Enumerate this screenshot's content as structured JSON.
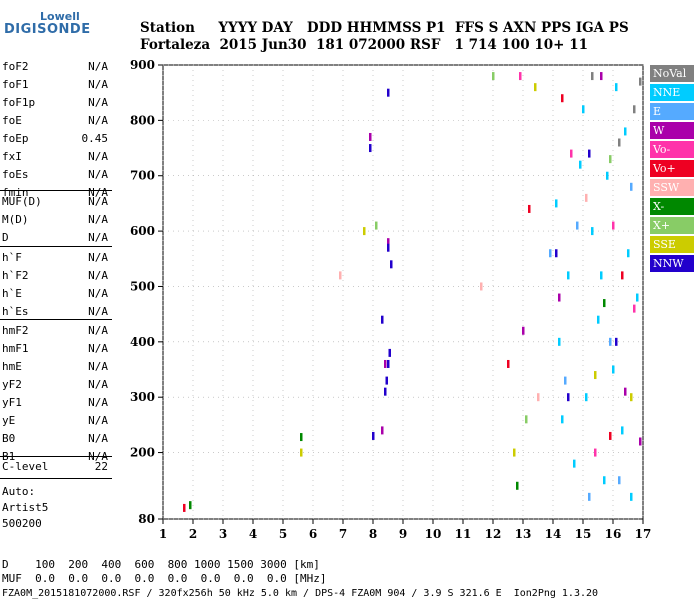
{
  "logo": {
    "line1": "Lowell",
    "line2": "DIGISONDE"
  },
  "header": {
    "row1": "Station     YYYY DAY   DDD HHMMSS P1  FFS S AXN PPS IGA PS",
    "row2": "Fortaleza  2015 Jun30  181 072000 RSF   1 714 100 10+ 11"
  },
  "params": {
    "group1": [
      {
        "name": "foF2",
        "value": "N/A"
      },
      {
        "name": "foF1",
        "value": "N/A"
      },
      {
        "name": "foF1p",
        "value": "N/A"
      },
      {
        "name": "foE",
        "value": "N/A"
      },
      {
        "name": "foEp",
        "value": "0.45"
      },
      {
        "name": "fxI",
        "value": "N/A"
      },
      {
        "name": "foEs",
        "value": "N/A"
      },
      {
        "name": "fmin",
        "value": "N/A"
      }
    ],
    "group2": [
      {
        "name": "MUF(D)",
        "value": "N/A"
      },
      {
        "name": "M(D)",
        "value": "N/A"
      },
      {
        "name": "D",
        "value": "N/A"
      }
    ],
    "group3": [
      {
        "name": "h`F",
        "value": "N/A"
      },
      {
        "name": "h`F2",
        "value": "N/A"
      },
      {
        "name": "h`E",
        "value": "N/A"
      },
      {
        "name": "h`Es",
        "value": "N/A"
      }
    ],
    "group4": [
      {
        "name": "hmF2",
        "value": "N/A"
      },
      {
        "name": "hmF1",
        "value": "N/A"
      },
      {
        "name": "hmE",
        "value": "N/A"
      },
      {
        "name": "yF2",
        "value": "N/A"
      },
      {
        "name": "yF1",
        "value": "N/A"
      },
      {
        "name": "yE",
        "value": "N/A"
      },
      {
        "name": "B0",
        "value": "N/A"
      },
      {
        "name": "B1",
        "value": "N/A"
      }
    ],
    "clevel": {
      "name": "C-level",
      "value": "22"
    }
  },
  "auto": {
    "line1": "Auto:",
    "line2": "Artist5",
    "line3": "500200"
  },
  "footer": {
    "row1": "D    100  200  400  600  800 1000 1500 3000 [km]",
    "row2": "MUF  0.0  0.0  0.0  0.0  0.0  0.0  0.0  0.0 [MHz]",
    "row3": "FZA0M_2015181072000.RSF / 320fx256h 50 kHz 5.0 km / DPS-4 FZA0M 904 / 3.9 S 321.6 E  Ion2Png 1.3.20"
  },
  "chart_data": {
    "type": "scatter",
    "x_ticks": [
      "1",
      "2",
      "3",
      "4",
      "5",
      "6",
      "7",
      "8",
      "9",
      "10",
      "11",
      "12",
      "13",
      "14",
      "15",
      "16",
      "17"
    ],
    "y_ticks": [
      "80",
      "200",
      "300",
      "400",
      "500",
      "600",
      "700",
      "800",
      "900"
    ],
    "xlim": [
      1,
      17
    ],
    "ylim": [
      80,
      900
    ],
    "grid": true,
    "legend_position": "right",
    "legend": [
      {
        "label": "NoVal",
        "color": "#808080"
      },
      {
        "label": "NNE",
        "color": "#00ccff"
      },
      {
        "label": "E",
        "color": "#55aaff"
      },
      {
        "label": "W",
        "color": "#aa00aa"
      },
      {
        "label": "Vo-",
        "color": "#ff33aa"
      },
      {
        "label": "Vo+",
        "color": "#ee0022"
      },
      {
        "label": "SSW",
        "color": "#ffb0b0"
      },
      {
        "label": "X-",
        "color": "#008800"
      },
      {
        "label": "X+",
        "color": "#88cc66"
      },
      {
        "label": "SSE",
        "color": "#cccc00"
      },
      {
        "label": "NNW",
        "color": "#2200cc"
      }
    ],
    "series": [
      {
        "name": "NoVal",
        "points": [
          [
            16.9,
            870
          ],
          [
            16.7,
            820
          ],
          [
            15.3,
            880
          ],
          [
            16.2,
            760
          ]
        ]
      },
      {
        "name": "NNE",
        "points": [
          [
            14.1,
            650
          ],
          [
            14.2,
            400
          ],
          [
            14.3,
            260
          ],
          [
            14.5,
            520
          ],
          [
            14.7,
            180
          ],
          [
            15.0,
            820
          ],
          [
            15.1,
            300
          ],
          [
            15.3,
            600
          ],
          [
            15.5,
            440
          ],
          [
            15.7,
            150
          ],
          [
            15.8,
            700
          ],
          [
            16.0,
            350
          ],
          [
            16.1,
            860
          ],
          [
            16.3,
            240
          ],
          [
            16.5,
            560
          ],
          [
            16.6,
            120
          ],
          [
            16.8,
            480
          ],
          [
            14.9,
            720
          ],
          [
            15.6,
            520
          ],
          [
            16.4,
            780
          ]
        ]
      },
      {
        "name": "E",
        "points": [
          [
            13.9,
            560
          ],
          [
            14.4,
            330
          ],
          [
            14.8,
            610
          ],
          [
            15.2,
            120
          ],
          [
            15.9,
            400
          ],
          [
            16.6,
            680
          ],
          [
            16.2,
            150
          ]
        ]
      },
      {
        "name": "W",
        "points": [
          [
            8.5,
            580
          ],
          [
            8.4,
            360
          ],
          [
            7.9,
            770
          ],
          [
            8.3,
            240
          ],
          [
            14.2,
            480
          ],
          [
            15.6,
            880
          ],
          [
            16.4,
            310
          ],
          [
            13.0,
            420
          ],
          [
            16.9,
            220
          ]
        ]
      },
      {
        "name": "Vo-",
        "points": [
          [
            14.6,
            740
          ],
          [
            15.4,
            200
          ],
          [
            16.0,
            610
          ],
          [
            12.9,
            880
          ],
          [
            16.7,
            460
          ]
        ]
      },
      {
        "name": "Vo+",
        "points": [
          [
            1.7,
            100
          ],
          [
            13.2,
            640
          ],
          [
            15.9,
            230
          ],
          [
            16.3,
            520
          ],
          [
            12.5,
            360
          ],
          [
            14.3,
            840
          ]
        ]
      },
      {
        "name": "SSW",
        "points": [
          [
            6.9,
            520
          ],
          [
            11.6,
            500
          ],
          [
            13.5,
            300
          ],
          [
            15.1,
            660
          ]
        ]
      },
      {
        "name": "X-",
        "points": [
          [
            1.9,
            105
          ],
          [
            5.6,
            228
          ],
          [
            12.8,
            140
          ],
          [
            15.7,
            470
          ]
        ]
      },
      {
        "name": "X+",
        "points": [
          [
            8.1,
            610
          ],
          [
            13.1,
            260
          ],
          [
            15.9,
            730
          ],
          [
            12.0,
            880
          ]
        ]
      },
      {
        "name": "SSE",
        "points": [
          [
            5.6,
            200
          ],
          [
            7.7,
            600
          ],
          [
            12.7,
            200
          ],
          [
            15.4,
            340
          ],
          [
            16.6,
            300
          ],
          [
            13.4,
            860
          ]
        ]
      },
      {
        "name": "NNW",
        "points": [
          [
            8.5,
            360
          ],
          [
            8.45,
            330
          ],
          [
            8.55,
            380
          ],
          [
            8.4,
            310
          ],
          [
            7.9,
            750
          ],
          [
            8.5,
            850
          ],
          [
            8.5,
            570
          ],
          [
            8.6,
            540
          ],
          [
            8.0,
            230
          ],
          [
            8.3,
            440
          ],
          [
            14.1,
            560
          ],
          [
            15.2,
            740
          ],
          [
            16.1,
            400
          ],
          [
            14.5,
            300
          ]
        ]
      }
    ]
  }
}
